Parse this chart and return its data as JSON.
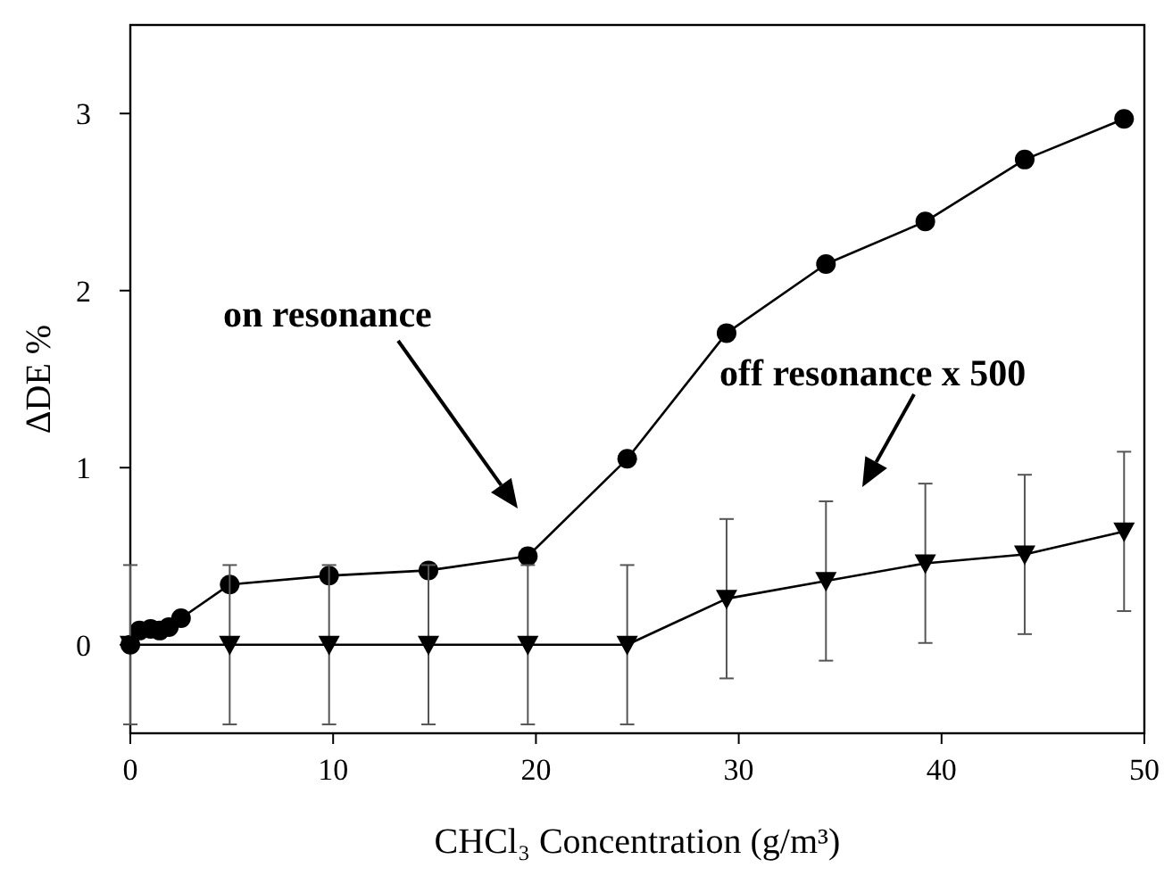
{
  "chart_data": {
    "type": "line",
    "xlabel": "CHCl₃ Concentration (g/m³)",
    "ylabel": "ΔDE %",
    "xlim": [
      0,
      50
    ],
    "xticks": [
      0,
      10,
      20,
      30,
      40,
      50
    ],
    "ylim": [
      -0.5,
      3.5
    ],
    "yticks": [
      0,
      1,
      2,
      3
    ],
    "series": [
      {
        "color": "#000000",
        "marker": "circle",
        "x": [
          0,
          0.45,
          1,
          1.45,
          1.9,
          2.5,
          4.9,
          9.8,
          14.7,
          19.6,
          24.5,
          29.4,
          34.3,
          39.2,
          44.1,
          49
        ],
        "values": [
          0,
          0.08,
          0.09,
          0.08,
          0.1,
          0.15,
          0.34,
          0.39,
          0.42,
          0.5,
          1.05,
          1.76,
          2.15,
          2.39,
          2.74,
          2.97
        ]
      },
      {
        "color": "#000000",
        "marker": "triangle",
        "x": [
          0,
          4.9,
          9.8,
          14.7,
          19.6,
          24.5,
          29.4,
          34.3,
          39.2,
          44.1,
          49
        ],
        "values": [
          0,
          0,
          0,
          0,
          0,
          0,
          0.26,
          0.36,
          0.46,
          0.51,
          0.64
        ],
        "errors": [
          0.45,
          0.45,
          0.45,
          0.45,
          0.45,
          0.45,
          0.45,
          0.45,
          0.45,
          0.45,
          0.45
        ]
      }
    ],
    "annotations": [
      "on resonance",
      "off resonance x 500"
    ]
  }
}
